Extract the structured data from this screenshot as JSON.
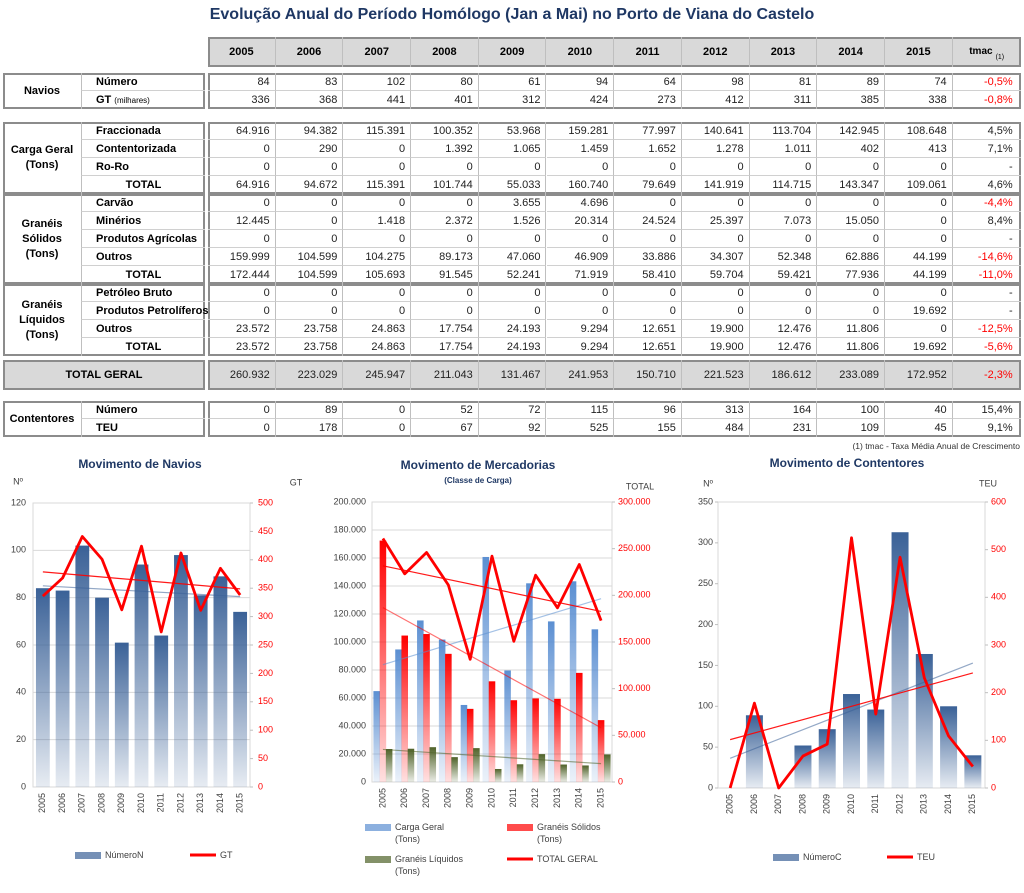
{
  "table": {
    "title": "Evolução Anual do Período Homólogo (Jan a Mai) no Porto de Viana do Castelo",
    "columns": [
      "2005",
      "2006",
      "2007",
      "2008",
      "2009",
      "2010",
      "2011",
      "2012",
      "2013",
      "2014",
      "2015"
    ],
    "tmac_header": "tmac",
    "tmac_note": "(1)",
    "blocks": [
      {
        "group": "Navios",
        "rows": [
          {
            "label": "Número",
            "values": [
              "84",
              "83",
              "102",
              "80",
              "61",
              "94",
              "64",
              "98",
              "81",
              "89",
              "74"
            ],
            "tmac": "-0,5%"
          },
          {
            "label": "GT",
            "note": "(milhares)",
            "values": [
              "336",
              "368",
              "441",
              "401",
              "312",
              "424",
              "273",
              "412",
              "311",
              "385",
              "338"
            ],
            "tmac": "-0,8%"
          }
        ]
      },
      {
        "group": "Carga Geral (Tons)",
        "rows": [
          {
            "label": "Fraccionada",
            "values": [
              "64.916",
              "94.382",
              "115.391",
              "100.352",
              "53.968",
              "159.281",
              "77.997",
              "140.641",
              "113.704",
              "142.945",
              "108.648"
            ],
            "tmac": "4,5%"
          },
          {
            "label": "Contentorizada",
            "values": [
              "0",
              "290",
              "0",
              "1.392",
              "1.065",
              "1.459",
              "1.652",
              "1.278",
              "1.011",
              "402",
              "413"
            ],
            "tmac": "7,1%"
          },
          {
            "label": "Ro-Ro",
            "values": [
              "0",
              "0",
              "0",
              "0",
              "0",
              "0",
              "0",
              "0",
              "0",
              "0",
              "0"
            ],
            "tmac": "-"
          },
          {
            "label": "TOTAL",
            "total": true,
            "values": [
              "64.916",
              "94.672",
              "115.391",
              "101.744",
              "55.033",
              "160.740",
              "79.649",
              "141.919",
              "114.715",
              "143.347",
              "109.061"
            ],
            "tmac": "4,6%"
          }
        ]
      },
      {
        "group": "Granéis Sólidos (Tons)",
        "rows": [
          {
            "label": "Carvão",
            "values": [
              "0",
              "0",
              "0",
              "0",
              "3.655",
              "4.696",
              "0",
              "0",
              "0",
              "0",
              "0"
            ],
            "tmac": "-4,4%"
          },
          {
            "label": "Minérios",
            "values": [
              "12.445",
              "0",
              "1.418",
              "2.372",
              "1.526",
              "20.314",
              "24.524",
              "25.397",
              "7.073",
              "15.050",
              "0"
            ],
            "tmac": "8,4%"
          },
          {
            "label": "Produtos Agrícolas",
            "values": [
              "0",
              "0",
              "0",
              "0",
              "0",
              "0",
              "0",
              "0",
              "0",
              "0",
              "0"
            ],
            "tmac": "-"
          },
          {
            "label": "Outros",
            "values": [
              "159.999",
              "104.599",
              "104.275",
              "89.173",
              "47.060",
              "46.909",
              "33.886",
              "34.307",
              "52.348",
              "62.886",
              "44.199"
            ],
            "tmac": "-14,6%"
          },
          {
            "label": "TOTAL",
            "total": true,
            "values": [
              "172.444",
              "104.599",
              "105.693",
              "91.545",
              "52.241",
              "71.919",
              "58.410",
              "59.704",
              "59.421",
              "77.936",
              "44.199"
            ],
            "tmac": "-11,0%"
          }
        ]
      },
      {
        "group": "Granéis Líquidos (Tons)",
        "rows": [
          {
            "label": "Petróleo Bruto",
            "values": [
              "0",
              "0",
              "0",
              "0",
              "0",
              "0",
              "0",
              "0",
              "0",
              "0",
              "0"
            ],
            "tmac": "-"
          },
          {
            "label": "Produtos Petrolíferos",
            "values": [
              "0",
              "0",
              "0",
              "0",
              "0",
              "0",
              "0",
              "0",
              "0",
              "0",
              "19.692"
            ],
            "tmac": "-"
          },
          {
            "label": "Outros",
            "values": [
              "23.572",
              "23.758",
              "24.863",
              "17.754",
              "24.193",
              "9.294",
              "12.651",
              "19.900",
              "12.476",
              "11.806",
              "0"
            ],
            "tmac": "-12,5%"
          },
          {
            "label": "TOTAL",
            "total": true,
            "values": [
              "23.572",
              "23.758",
              "24.863",
              "17.754",
              "24.193",
              "9.294",
              "12.651",
              "19.900",
              "12.476",
              "11.806",
              "19.692"
            ],
            "tmac": "-5,6%"
          }
        ]
      },
      {
        "group": "TOTAL GERAL",
        "highlight": true,
        "rows": [
          {
            "values": [
              "260.932",
              "223.029",
              "245.947",
              "211.043",
              "131.467",
              "241.953",
              "150.710",
              "221.523",
              "186.612",
              "233.089",
              "172.952"
            ],
            "tmac": "-2,3%"
          }
        ]
      },
      {
        "group": "Contentores",
        "rows": [
          {
            "label": "Número",
            "values": [
              "0",
              "89",
              "0",
              "52",
              "72",
              "115",
              "96",
              "313",
              "164",
              "100",
              "40"
            ],
            "tmac": "15,4%"
          },
          {
            "label": "TEU",
            "values": [
              "0",
              "178",
              "0",
              "67",
              "92",
              "525",
              "155",
              "484",
              "231",
              "109",
              "45"
            ],
            "tmac": "9,1%"
          }
        ]
      }
    ],
    "footnote": "(1) tmac - Taxa Média Anual de Crescimento"
  },
  "chart_data": [
    {
      "type": "bar_line",
      "title": "Movimento de Navios",
      "y_label": "Nº",
      "y2_label": "GT",
      "categories": [
        "2005",
        "2006",
        "2007",
        "2008",
        "2009",
        "2010",
        "2011",
        "2012",
        "2013",
        "2014",
        "2015"
      ],
      "series": [
        {
          "name": "NúmeroN",
          "type": "bar",
          "color": "#3a6197",
          "values": [
            84,
            83,
            102,
            80,
            61,
            94,
            64,
            98,
            81,
            89,
            74
          ],
          "trendline": true
        },
        {
          "name": "GT",
          "type": "line",
          "axis": "y2",
          "color": "#ff0000",
          "values": [
            336,
            368,
            441,
            401,
            312,
            424,
            273,
            412,
            311,
            385,
            338
          ],
          "trendline": true
        }
      ],
      "ylim": [
        0,
        120
      ],
      "yticks": [
        0,
        20,
        40,
        60,
        80,
        100,
        120
      ],
      "y2lim": [
        0,
        500
      ],
      "y2ticks": [
        0,
        50,
        100,
        150,
        200,
        250,
        300,
        350,
        400,
        450,
        500
      ],
      "grid": true
    },
    {
      "type": "bar_line",
      "title": "Movimento  de Mercadorias",
      "subtitle": "(Classe de Carga)",
      "y2_label": "TOTAL",
      "categories": [
        "2005",
        "2006",
        "2007",
        "2008",
        "2009",
        "2010",
        "2011",
        "2012",
        "2013",
        "2014",
        "2015"
      ],
      "series": [
        {
          "name": "Carga Geral (Tons)",
          "type": "bar",
          "color": "#5b8fd2",
          "values": [
            64916,
            94672,
            115391,
            101744,
            55033,
            160740,
            79649,
            141919,
            114715,
            143347,
            109061
          ],
          "trendline": true
        },
        {
          "name": "Granéis Sólidos (Tons)",
          "type": "bar",
          "color": "#ff0000",
          "values": [
            172444,
            104599,
            105693,
            91545,
            52241,
            71919,
            58410,
            59704,
            59421,
            77936,
            44199
          ],
          "trendline": true
        },
        {
          "name": "Granéis Líquidos (Tons)",
          "type": "bar",
          "color": "#4f6228",
          "values": [
            23572,
            23758,
            24863,
            17754,
            24193,
            9294,
            12651,
            19900,
            12476,
            11806,
            19692
          ],
          "trendline": true
        },
        {
          "name": "TOTAL GERAL",
          "type": "line",
          "axis": "y2",
          "color": "#ff0000",
          "values": [
            260932,
            223029,
            245947,
            211043,
            131467,
            241953,
            150710,
            221523,
            186612,
            233089,
            172952
          ],
          "trendline": true
        }
      ],
      "ylim": [
        0,
        200000
      ],
      "yticks": [
        0,
        {
          "value": 20000,
          "label": "20.000"
        },
        {
          "value": 40000,
          "label": "40.000"
        },
        {
          "value": 60000,
          "label": "60.000"
        },
        {
          "value": 80000,
          "label": "80.000"
        },
        {
          "value": 100000,
          "label": "100.000"
        },
        {
          "value": 120000,
          "label": "120.000"
        },
        {
          "value": 140000,
          "label": "140.000"
        },
        {
          "value": 160000,
          "label": "160.000"
        },
        {
          "value": 180000,
          "label": "180.000"
        },
        {
          "value": 200000,
          "label": "200.000"
        }
      ],
      "y2lim": [
        0,
        300000
      ],
      "y2ticks": [
        0,
        {
          "value": 50000,
          "label": "50.000"
        },
        {
          "value": 100000,
          "label": "100.000"
        },
        {
          "value": 150000,
          "label": "150.000"
        },
        {
          "value": 200000,
          "label": "200.000"
        },
        {
          "value": 250000,
          "label": "250.000"
        },
        {
          "value": 300000,
          "label": "300.000"
        }
      ],
      "grid": true
    },
    {
      "type": "bar_line",
      "title": "Movimento de Contentores",
      "y_label": "Nº",
      "y2_label": "TEU",
      "categories": [
        "2005",
        "2006",
        "2007",
        "2008",
        "2009",
        "2010",
        "2011",
        "2012",
        "2013",
        "2014",
        "2015"
      ],
      "series": [
        {
          "name": "NúmeroC",
          "type": "bar",
          "color": "#3a6197",
          "values": [
            0,
            89,
            0,
            52,
            72,
            115,
            96,
            313,
            164,
            100,
            40
          ],
          "trendline": true
        },
        {
          "name": "TEU",
          "type": "line",
          "axis": "y2",
          "color": "#ff0000",
          "values": [
            0,
            178,
            0,
            67,
            92,
            525,
            155,
            484,
            231,
            109,
            45
          ],
          "trendline": true
        }
      ],
      "ylim": [
        0,
        350
      ],
      "yticks": [
        0,
        50,
        100,
        150,
        200,
        250,
        300,
        350
      ],
      "y2lim": [
        0,
        600
      ],
      "y2ticks": [
        0,
        100,
        200,
        300,
        400,
        500,
        600
      ],
      "grid": false
    }
  ]
}
